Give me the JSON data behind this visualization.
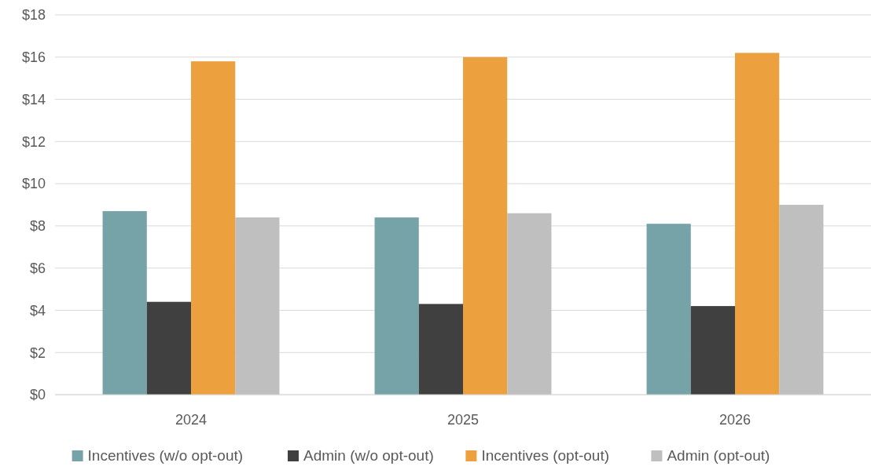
{
  "chart_data": {
    "type": "bar",
    "categories": [
      "2024",
      "2025",
      "2026"
    ],
    "series": [
      {
        "name": "Incentives (w/o opt-out)",
        "color": "#76a3a7",
        "values": [
          8.7,
          8.4,
          8.1
        ]
      },
      {
        "name": "Admin (w/o opt-out)",
        "color": "#404040",
        "values": [
          4.4,
          4.3,
          4.2
        ]
      },
      {
        "name": "Incentives (opt-out)",
        "color": "#eda03e",
        "values": [
          15.8,
          16.0,
          16.2
        ]
      },
      {
        "name": "Admin (opt-out)",
        "color": "#bfbfbf",
        "values": [
          8.4,
          8.6,
          9.0
        ]
      }
    ],
    "ylim": [
      0,
      18
    ],
    "yticks": [
      {
        "value": 0,
        "label": "$0"
      },
      {
        "value": 2,
        "label": "$2"
      },
      {
        "value": 4,
        "label": "$4"
      },
      {
        "value": 6,
        "label": "$6"
      },
      {
        "value": 8,
        "label": "$8"
      },
      {
        "value": 10,
        "label": "$10"
      },
      {
        "value": 12,
        "label": "$12"
      },
      {
        "value": 14,
        "label": "$14"
      },
      {
        "value": 16,
        "label": "$16"
      },
      {
        "value": 18,
        "label": "$18"
      }
    ],
    "grid": "y",
    "legend": "bottom"
  }
}
